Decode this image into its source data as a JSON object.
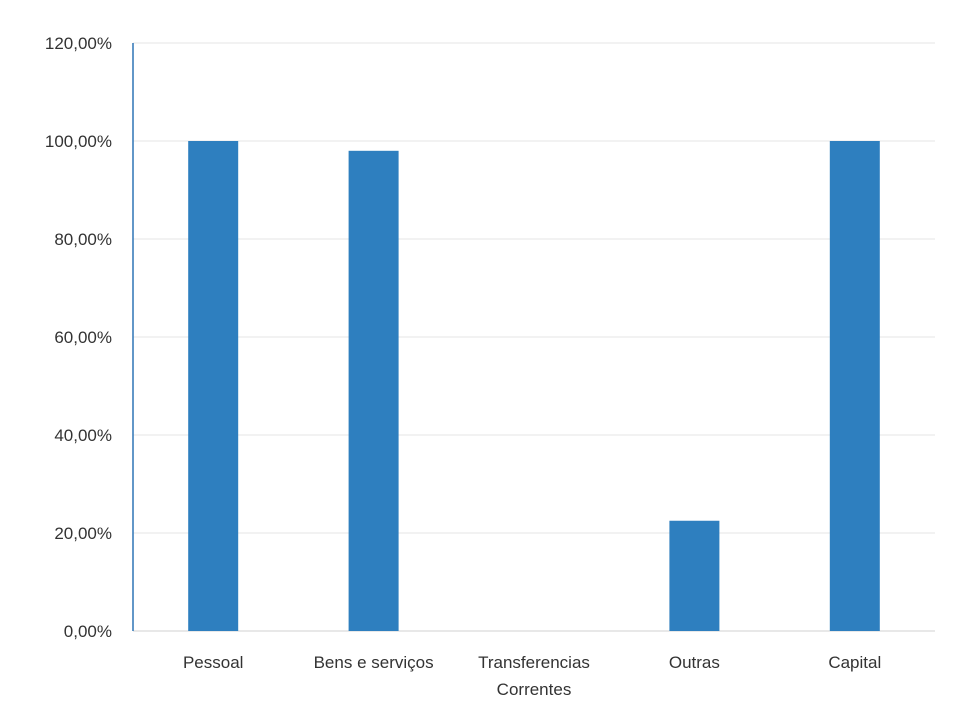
{
  "chart_data": {
    "type": "bar",
    "categories": [
      [
        "Pessoal"
      ],
      [
        "Bens e serviços"
      ],
      [
        "Transferencias",
        "Correntes"
      ],
      [
        "Outras"
      ],
      [
        "Capital"
      ]
    ],
    "values": [
      100,
      98,
      0,
      22.5,
      100
    ],
    "y_ticks": [
      "0,00%",
      "20,00%",
      "40,00%",
      "60,00%",
      "80,00%",
      "100,00%",
      "120,00%"
    ],
    "y_tick_values": [
      0,
      20,
      40,
      60,
      80,
      100,
      120
    ],
    "ylim": [
      0,
      120
    ],
    "title": "",
    "xlabel": "",
    "ylabel": "",
    "grid": true,
    "legend": "none",
    "bar_color": "#2e7fbf"
  }
}
